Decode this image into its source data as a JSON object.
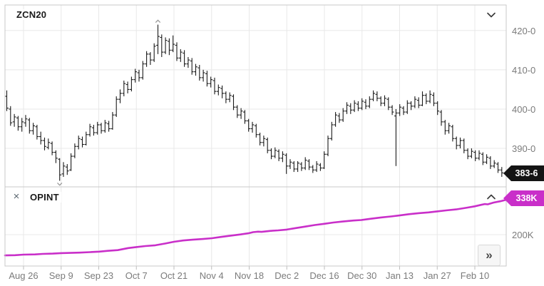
{
  "price_panel": {
    "symbol": "ZCN20",
    "last_price_badge": "383-6"
  },
  "opint_panel": {
    "label": "OPINT",
    "close_icon": "×",
    "last_value_badge": "338K"
  },
  "controls": {
    "scroll_forward_label": "»"
  },
  "colors": {
    "bar": "#1a1a1a",
    "opint_line": "#c92fc9",
    "price_badge_bg": "#141414",
    "opint_badge_bg": "#c92fc9",
    "grid": "#e8e8e8",
    "border": "#c9c9c9",
    "axis_text": "#7b7b7b",
    "marker": "#999999"
  },
  "x_axis": {
    "labels": [
      "Aug 26",
      "Sep 9",
      "Sep 23",
      "Oct 7",
      "Oct 21",
      "Nov 4",
      "Nov 18",
      "Dec 2",
      "Dec 16",
      "Dec 30",
      "Jan 13",
      "Jan 27",
      "Feb 10"
    ]
  },
  "chart_data": [
    {
      "type": "bar",
      "subtype": "ohlc",
      "title": "ZCN20",
      "legend_position": "top-left",
      "grid": true,
      "ylim": [
        380.2,
        426.5
      ],
      "y_ticks": [
        {
          "label": "420-0",
          "value": 420
        },
        {
          "label": "410-0",
          "value": 410
        },
        {
          "label": "400-0",
          "value": 400
        },
        {
          "label": "390-0",
          "value": 390
        }
      ],
      "last_price_label": "383-6",
      "last_close": 383.75,
      "annotations": [
        {
          "type": "high-marker",
          "bar": 40,
          "value": 421.5
        },
        {
          "type": "low-marker",
          "bar": 14,
          "value": 381.75
        }
      ],
      "bars_ohlc": [
        [
          403.25,
          404.75,
          399.5,
          400.25
        ],
        [
          400.0,
          400.75,
          395.75,
          396.5
        ],
        [
          396.75,
          398.75,
          395.5,
          398.0
        ],
        [
          397.75,
          398.25,
          394.5,
          395.5
        ],
        [
          395.5,
          397.75,
          394.25,
          396.75
        ],
        [
          396.5,
          398.5,
          395.5,
          397.5
        ],
        [
          397.25,
          397.75,
          393.75,
          394.5
        ],
        [
          394.5,
          396.5,
          393.5,
          395.75
        ],
        [
          395.5,
          396.0,
          392.25,
          393.0
        ],
        [
          393.0,
          394.25,
          391.0,
          392.0
        ],
        [
          392.0,
          392.75,
          389.5,
          390.5
        ],
        [
          390.25,
          392.5,
          389.75,
          391.5
        ],
        [
          391.25,
          391.75,
          388.25,
          389.0
        ],
        [
          389.0,
          389.5,
          386.25,
          387.5
        ],
        [
          387.25,
          387.5,
          381.75,
          383.25
        ],
        [
          383.5,
          386.5,
          382.75,
          385.5
        ],
        [
          385.25,
          386.0,
          383.25,
          384.25
        ],
        [
          384.5,
          388.75,
          384.25,
          388.0
        ],
        [
          388.0,
          391.25,
          387.5,
          390.5
        ],
        [
          390.5,
          393.25,
          389.75,
          392.5
        ],
        [
          392.25,
          393.0,
          390.25,
          391.0
        ],
        [
          391.0,
          394.25,
          390.75,
          393.5
        ],
        [
          393.5,
          396.25,
          393.0,
          395.5
        ],
        [
          395.25,
          396.0,
          393.25,
          394.0
        ],
        [
          394.0,
          396.75,
          393.5,
          396.0
        ],
        [
          396.0,
          396.5,
          393.75,
          394.5
        ],
        [
          394.5,
          397.25,
          394.0,
          396.5
        ],
        [
          396.25,
          397.0,
          394.25,
          395.0
        ],
        [
          395.0,
          399.25,
          394.75,
          398.5
        ],
        [
          398.5,
          403.25,
          398.0,
          402.5
        ],
        [
          402.5,
          405.0,
          401.5,
          404.0
        ],
        [
          404.0,
          407.25,
          403.25,
          406.5
        ],
        [
          406.25,
          407.0,
          404.0,
          405.0
        ],
        [
          405.0,
          408.25,
          404.5,
          407.5
        ],
        [
          407.5,
          410.25,
          406.75,
          409.5
        ],
        [
          409.25,
          410.0,
          407.0,
          408.0
        ],
        [
          408.0,
          412.25,
          407.5,
          411.5
        ],
        [
          411.5,
          414.75,
          410.75,
          414.0
        ],
        [
          414.0,
          414.5,
          411.25,
          412.5
        ],
        [
          412.5,
          416.75,
          412.0,
          416.0
        ],
        [
          416.25,
          421.5,
          414.0,
          418.5
        ],
        [
          418.25,
          419.0,
          413.25,
          414.5
        ],
        [
          414.5,
          418.25,
          414.0,
          417.5
        ],
        [
          417.25,
          418.0,
          413.75,
          415.0
        ],
        [
          415.0,
          418.75,
          414.5,
          416.5
        ],
        [
          416.25,
          417.0,
          412.25,
          413.0
        ],
        [
          413.0,
          415.25,
          412.0,
          414.5
        ],
        [
          414.25,
          415.0,
          410.75,
          411.5
        ],
        [
          411.5,
          413.25,
          410.5,
          412.5
        ],
        [
          412.25,
          413.0,
          408.75,
          409.5
        ],
        [
          409.5,
          411.5,
          408.5,
          410.75
        ],
        [
          410.5,
          411.25,
          407.25,
          408.0
        ],
        [
          408.0,
          410.0,
          407.0,
          409.25
        ],
        [
          409.0,
          409.75,
          405.75,
          406.5
        ],
        [
          406.5,
          408.25,
          405.5,
          407.5
        ],
        [
          407.25,
          408.0,
          403.75,
          404.5
        ],
        [
          404.5,
          406.25,
          403.5,
          405.5
        ],
        [
          405.25,
          406.0,
          402.75,
          404.0
        ],
        [
          404.0,
          404.5,
          401.5,
          402.5
        ],
        [
          402.5,
          404.25,
          401.75,
          403.5
        ],
        [
          403.25,
          403.75,
          399.75,
          400.5
        ],
        [
          400.5,
          401.0,
          397.75,
          398.5
        ],
        [
          398.5,
          400.25,
          397.5,
          399.5
        ],
        [
          399.25,
          399.75,
          396.25,
          397.0
        ],
        [
          397.0,
          397.5,
          394.25,
          395.0
        ],
        [
          395.0,
          396.75,
          394.0,
          396.0
        ],
        [
          395.75,
          396.25,
          392.75,
          393.5
        ],
        [
          393.5,
          394.0,
          390.75,
          391.5
        ],
        [
          391.5,
          393.25,
          390.5,
          392.5
        ],
        [
          392.25,
          392.75,
          388.75,
          389.5
        ],
        [
          389.5,
          390.0,
          387.25,
          388.0
        ],
        [
          388.0,
          390.25,
          387.5,
          389.5
        ],
        [
          389.25,
          389.75,
          386.75,
          387.5
        ],
        [
          387.5,
          389.25,
          386.5,
          388.5
        ],
        [
          388.25,
          388.75,
          383.5,
          385.5
        ],
        [
          385.5,
          387.25,
          384.75,
          386.5
        ],
        [
          386.25,
          386.75,
          384.0,
          384.75
        ],
        [
          384.75,
          386.75,
          384.0,
          386.25
        ],
        [
          386.0,
          386.5,
          384.25,
          385.0
        ],
        [
          385.0,
          387.75,
          384.5,
          387.0
        ],
        [
          386.75,
          387.25,
          384.5,
          385.25
        ],
        [
          385.25,
          385.75,
          383.75,
          384.5
        ],
        [
          384.5,
          386.75,
          384.0,
          386.0
        ],
        [
          385.75,
          386.25,
          384.25,
          385.0
        ],
        [
          385.0,
          389.25,
          384.75,
          388.5
        ],
        [
          388.5,
          393.25,
          388.0,
          392.5
        ],
        [
          392.5,
          396.75,
          392.0,
          396.0
        ],
        [
          396.0,
          399.25,
          395.5,
          398.5
        ],
        [
          398.25,
          399.0,
          396.5,
          397.25
        ],
        [
          397.25,
          400.25,
          396.75,
          399.5
        ],
        [
          399.5,
          401.75,
          398.75,
          401.0
        ],
        [
          400.75,
          401.5,
          398.75,
          399.75
        ],
        [
          399.75,
          402.25,
          399.25,
          401.5
        ],
        [
          401.25,
          402.0,
          399.5,
          400.25
        ],
        [
          400.25,
          402.75,
          399.75,
          402.0
        ],
        [
          401.75,
          402.5,
          400.0,
          400.75
        ],
        [
          400.75,
          403.25,
          400.25,
          402.5
        ],
        [
          402.5,
          404.75,
          402.0,
          404.0
        ],
        [
          403.75,
          404.5,
          402.0,
          402.75
        ],
        [
          402.75,
          403.25,
          400.75,
          401.5
        ],
        [
          401.5,
          403.5,
          400.75,
          402.75
        ],
        [
          402.5,
          403.0,
          399.75,
          400.5
        ],
        [
          400.5,
          401.0,
          398.5,
          399.25
        ],
        [
          398.25,
          400.0,
          385.5,
          399.0
        ],
        [
          399.0,
          401.25,
          398.25,
          400.5
        ],
        [
          400.25,
          400.75,
          398.5,
          399.25
        ],
        [
          399.25,
          402.25,
          398.75,
          401.5
        ],
        [
          401.5,
          402.0,
          399.75,
          400.75
        ],
        [
          400.75,
          403.25,
          400.25,
          402.5
        ],
        [
          402.25,
          403.0,
          400.25,
          401.0
        ],
        [
          401.0,
          404.5,
          400.75,
          403.5
        ],
        [
          403.5,
          404.0,
          401.25,
          402.0
        ],
        [
          402.0,
          404.75,
          401.5,
          403.75
        ],
        [
          403.5,
          404.25,
          400.75,
          401.5
        ],
        [
          401.5,
          402.0,
          398.5,
          399.5
        ],
        [
          399.25,
          399.75,
          395.75,
          396.75
        ],
        [
          396.75,
          397.25,
          393.5,
          394.5
        ],
        [
          394.5,
          396.5,
          393.75,
          395.75
        ],
        [
          395.5,
          396.0,
          391.75,
          392.5
        ],
        [
          392.5,
          393.0,
          389.75,
          390.75
        ],
        [
          390.75,
          392.75,
          390.0,
          392.0
        ],
        [
          392.0,
          392.5,
          388.75,
          389.5
        ],
        [
          389.5,
          390.0,
          387.25,
          388.0
        ],
        [
          388.0,
          390.0,
          387.5,
          389.25
        ],
        [
          389.0,
          389.5,
          386.75,
          387.5
        ],
        [
          387.5,
          389.5,
          387.0,
          388.75
        ],
        [
          388.5,
          389.0,
          385.75,
          386.5
        ],
        [
          386.5,
          388.5,
          386.0,
          387.75
        ],
        [
          387.5,
          388.0,
          384.75,
          385.5
        ],
        [
          385.5,
          387.0,
          385.0,
          386.25
        ],
        [
          386.0,
          386.5,
          383.75,
          384.5
        ],
        [
          384.5,
          385.25,
          382.75,
          383.75
        ]
      ]
    },
    {
      "type": "line",
      "title": "OPINT",
      "unit": "K",
      "grid": true,
      "ylim": [
        76,
        389
      ],
      "y_ticks": [
        {
          "label": "200K",
          "value": 200
        }
      ],
      "last_value_label": "338K",
      "last_value": 338,
      "points": [
        [
          0.0,
          118
        ],
        [
          0.02,
          119
        ],
        [
          0.037,
          121
        ],
        [
          0.06,
          122
        ],
        [
          0.075,
          124
        ],
        [
          0.095,
          125
        ],
        [
          0.112,
          127
        ],
        [
          0.13,
          128
        ],
        [
          0.149,
          129
        ],
        [
          0.17,
          131
        ],
        [
          0.188,
          133
        ],
        [
          0.205,
          136
        ],
        [
          0.225,
          139
        ],
        [
          0.246,
          147
        ],
        [
          0.262,
          151
        ],
        [
          0.28,
          155
        ],
        [
          0.3,
          158
        ],
        [
          0.32,
          165
        ],
        [
          0.337,
          172
        ],
        [
          0.355,
          177
        ],
        [
          0.374,
          180
        ],
        [
          0.395,
          183
        ],
        [
          0.413,
          186
        ],
        [
          0.431,
          191
        ],
        [
          0.45,
          196
        ],
        [
          0.47,
          201
        ],
        [
          0.487,
          206
        ],
        [
          0.495,
          210
        ],
        [
          0.505,
          212
        ],
        [
          0.512,
          211
        ],
        [
          0.53,
          215
        ],
        [
          0.545,
          217
        ],
        [
          0.562,
          220
        ],
        [
          0.58,
          226
        ],
        [
          0.599,
          232
        ],
        [
          0.618,
          238
        ],
        [
          0.637,
          243
        ],
        [
          0.655,
          248
        ],
        [
          0.674,
          252
        ],
        [
          0.695,
          256
        ],
        [
          0.711,
          258
        ],
        [
          0.73,
          263
        ],
        [
          0.75,
          268
        ],
        [
          0.77,
          272
        ],
        [
          0.787,
          276
        ],
        [
          0.806,
          281
        ],
        [
          0.825,
          285
        ],
        [
          0.845,
          288
        ],
        [
          0.862,
          292
        ],
        [
          0.88,
          296
        ],
        [
          0.9,
          300
        ],
        [
          0.92,
          306
        ],
        [
          0.937,
          312
        ],
        [
          0.95,
          318
        ],
        [
          0.957,
          321
        ],
        [
          0.963,
          320
        ],
        [
          0.975,
          327
        ],
        [
          0.988,
          332
        ],
        [
          1.0,
          338
        ]
      ]
    }
  ]
}
